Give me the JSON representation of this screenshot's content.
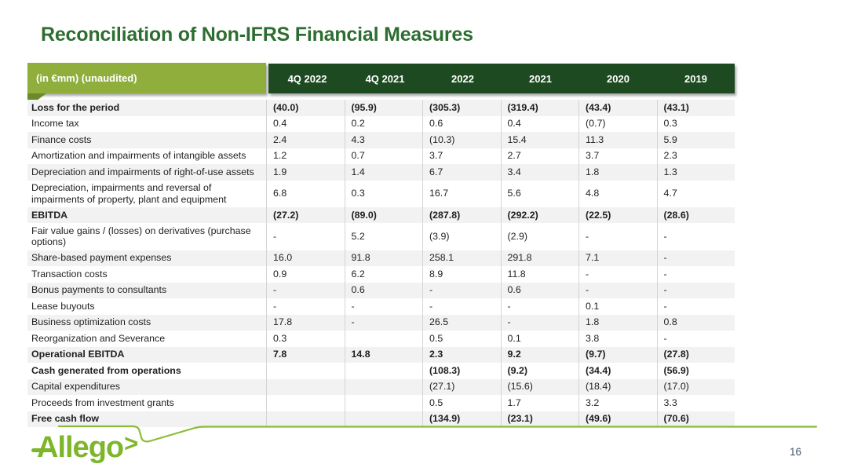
{
  "slide": {
    "title": "Reconciliation of Non-IFRS Financial Measures",
    "page_number": "16",
    "logo_text": "Allego",
    "logo_chevron": ">"
  },
  "colors": {
    "title_green": "#2e6d31",
    "header_light_green": "#8fae3b",
    "header_fold_green": "#6c8a2c",
    "header_dark_green": "#1e4a22",
    "stripe_gray": "#f2f2f2",
    "body_text": "#1f1f1f",
    "separator_gray": "#d4d4d4",
    "accent_lime": "#7db62b",
    "swoosh_lime": "#8cbb37",
    "page_number_gray": "#44546a"
  },
  "table": {
    "unit_label": "(in €mm) (unaudited)",
    "columns": [
      "4Q 2022",
      "4Q 2021",
      "2022",
      "2021",
      "2020",
      "2019"
    ],
    "rows": [
      {
        "label": "Loss for the period",
        "bold": true,
        "values": [
          "(40.0)",
          "(95.9)",
          "(305.3)",
          "(319.4)",
          "(43.4)",
          "(43.1)"
        ]
      },
      {
        "label": "Income tax",
        "bold": false,
        "values": [
          "0.4",
          "0.2",
          "0.6",
          "0.4",
          "(0.7)",
          "0.3"
        ]
      },
      {
        "label": "Finance costs",
        "bold": false,
        "values": [
          "2.4",
          "4.3",
          "(10.3)",
          "15.4",
          "11.3",
          "5.9"
        ]
      },
      {
        "label": "Amortization and impairments of intangible assets",
        "bold": false,
        "values": [
          "1.2",
          "0.7",
          "3.7",
          "2.7",
          "3.7",
          "2.3"
        ]
      },
      {
        "label": "Depreciation and impairments of right-of-use assets",
        "bold": false,
        "values": [
          "1.9",
          "1.4",
          "6.7",
          "3.4",
          "1.8",
          "1.3"
        ]
      },
      {
        "label": "Depreciation, impairments and reversal of impairments of property, plant and equipment",
        "bold": false,
        "values": [
          "6.8",
          "0.3",
          "16.7",
          "5.6",
          "4.8",
          "4.7"
        ]
      },
      {
        "label": "EBITDA",
        "bold": true,
        "values": [
          "(27.2)",
          "(89.0)",
          "(287.8)",
          "(292.2)",
          "(22.5)",
          "(28.6)"
        ]
      },
      {
        "label": "Fair value gains / (losses) on derivatives (purchase options)",
        "bold": false,
        "values": [
          "-",
          "5.2",
          "(3.9)",
          "(2.9)",
          "-",
          "-"
        ]
      },
      {
        "label": "Share-based payment expenses",
        "bold": false,
        "values": [
          "16.0",
          "91.8",
          "258.1",
          "291.8",
          "7.1",
          "-"
        ]
      },
      {
        "label": "Transaction costs",
        "bold": false,
        "values": [
          "0.9",
          "6.2",
          "8.9",
          "11.8",
          "-",
          "-"
        ]
      },
      {
        "label": "Bonus payments to consultants",
        "bold": false,
        "values": [
          "-",
          "0.6",
          "-",
          "0.6",
          "-",
          "-"
        ]
      },
      {
        "label": "Lease buyouts",
        "bold": false,
        "values": [
          "-",
          "-",
          "-",
          "-",
          "0.1",
          "-"
        ]
      },
      {
        "label": "Business optimization costs",
        "bold": false,
        "values": [
          "17.8",
          "-",
          "26.5",
          "-",
          "1.8",
          "0.8"
        ]
      },
      {
        "label": "Reorganization and Severance",
        "bold": false,
        "values": [
          "0.3",
          "",
          "0.5",
          "0.1",
          "3.8",
          "-"
        ]
      },
      {
        "label": "Operational EBITDA",
        "bold": true,
        "values": [
          "7.8",
          "14.8",
          "2.3",
          "9.2",
          "(9.7)",
          "(27.8)"
        ]
      },
      {
        "label": "Cash generated from operations",
        "bold": true,
        "values": [
          "",
          "",
          "(108.3)",
          "(9.2)",
          "(34.4)",
          "(56.9)"
        ]
      },
      {
        "label": "Capital expenditures",
        "bold": false,
        "values": [
          "",
          "",
          "(27.1)",
          "(15.6)",
          "(18.4)",
          "(17.0)"
        ]
      },
      {
        "label": "Proceeds from investment grants",
        "bold": false,
        "values": [
          "",
          "",
          "0.5",
          "1.7",
          "3.2",
          "3.3"
        ]
      },
      {
        "label": "Free cash flow",
        "bold": true,
        "values": [
          "",
          "",
          "(134.9)",
          "(23.1)",
          "(49.6)",
          "(70.6)"
        ]
      }
    ]
  }
}
